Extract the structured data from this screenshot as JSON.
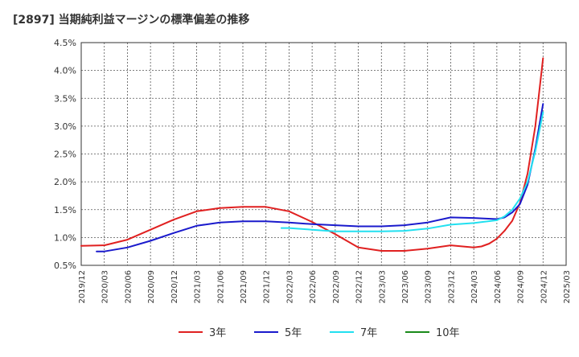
{
  "chart_data": {
    "type": "line",
    "title": "[2897]  当期純利益マージンの標準偏差の推移",
    "xlabel": "",
    "ylabel": "",
    "ylim": [
      0.5,
      4.5
    ],
    "yticks": [
      "0.5%",
      "1.0%",
      "1.5%",
      "2.0%",
      "2.5%",
      "3.0%",
      "3.5%",
      "4.0%",
      "4.5%"
    ],
    "xticks": [
      "2019/12",
      "2020/03",
      "2020/06",
      "2020/09",
      "2020/12",
      "2021/03",
      "2021/06",
      "2021/09",
      "2021/12",
      "2022/03",
      "2022/06",
      "2022/09",
      "2022/12",
      "2023/03",
      "2023/06",
      "2023/09",
      "2023/12",
      "2024/03",
      "2024/06",
      "2024/09",
      "2024/12",
      "2025/03"
    ],
    "grid": true,
    "legend_position": "bottom",
    "series": [
      {
        "name": "3年",
        "color": "#e02020",
        "points": [
          [
            "2019/12",
            0.85
          ],
          [
            "2020/03",
            0.86
          ],
          [
            "2020/06",
            0.96
          ],
          [
            "2020/09",
            1.14
          ],
          [
            "2020/12",
            1.32
          ],
          [
            "2021/03",
            1.47
          ],
          [
            "2021/06",
            1.53
          ],
          [
            "2021/09",
            1.55
          ],
          [
            "2021/12",
            1.55
          ],
          [
            "2022/03",
            1.47
          ],
          [
            "2022/06",
            1.28
          ],
          [
            "2022/09",
            1.06
          ],
          [
            "2022/12",
            0.82
          ],
          [
            "2023/03",
            0.76
          ],
          [
            "2023/06",
            0.76
          ],
          [
            "2023/09",
            0.8
          ],
          [
            "2023/12",
            0.86
          ],
          [
            "2024/03",
            0.82
          ],
          [
            "2024/04",
            0.84
          ],
          [
            "2024/05",
            0.89
          ],
          [
            "2024/06",
            0.98
          ],
          [
            "2024/07",
            1.12
          ],
          [
            "2024/08",
            1.3
          ],
          [
            "2024/09",
            1.62
          ],
          [
            "2024/10",
            2.15
          ],
          [
            "2024/11",
            3.0
          ],
          [
            "2024/12",
            4.22
          ]
        ]
      },
      {
        "name": "5年",
        "color": "#1a1acc",
        "points": [
          [
            "2020/02",
            0.75
          ],
          [
            "2020/03",
            0.75
          ],
          [
            "2020/06",
            0.82
          ],
          [
            "2020/09",
            0.94
          ],
          [
            "2020/12",
            1.08
          ],
          [
            "2021/03",
            1.21
          ],
          [
            "2021/06",
            1.27
          ],
          [
            "2021/09",
            1.29
          ],
          [
            "2021/12",
            1.29
          ],
          [
            "2022/03",
            1.27
          ],
          [
            "2022/06",
            1.24
          ],
          [
            "2022/09",
            1.22
          ],
          [
            "2022/12",
            1.2
          ],
          [
            "2023/03",
            1.2
          ],
          [
            "2023/06",
            1.22
          ],
          [
            "2023/09",
            1.27
          ],
          [
            "2023/12",
            1.36
          ],
          [
            "2024/03",
            1.35
          ],
          [
            "2024/06",
            1.33
          ],
          [
            "2024/07",
            1.36
          ],
          [
            "2024/08",
            1.45
          ],
          [
            "2024/09",
            1.6
          ],
          [
            "2024/10",
            1.95
          ],
          [
            "2024/11",
            2.6
          ],
          [
            "2024/12",
            3.4
          ]
        ]
      },
      {
        "name": "7年",
        "color": "#22e0f0",
        "points": [
          [
            "2022/02",
            1.17
          ],
          [
            "2022/03",
            1.17
          ],
          [
            "2022/06",
            1.14
          ],
          [
            "2022/09",
            1.11
          ],
          [
            "2022/12",
            1.11
          ],
          [
            "2023/03",
            1.11
          ],
          [
            "2023/06",
            1.12
          ],
          [
            "2023/09",
            1.16
          ],
          [
            "2023/12",
            1.23
          ],
          [
            "2024/03",
            1.26
          ],
          [
            "2024/06",
            1.31
          ],
          [
            "2024/07",
            1.38
          ],
          [
            "2024/08",
            1.5
          ],
          [
            "2024/09",
            1.7
          ],
          [
            "2024/10",
            2.0
          ],
          [
            "2024/11",
            2.55
          ],
          [
            "2024/12",
            3.25
          ]
        ]
      },
      {
        "name": "10年",
        "color": "#1a8a1a",
        "points": []
      }
    ]
  }
}
